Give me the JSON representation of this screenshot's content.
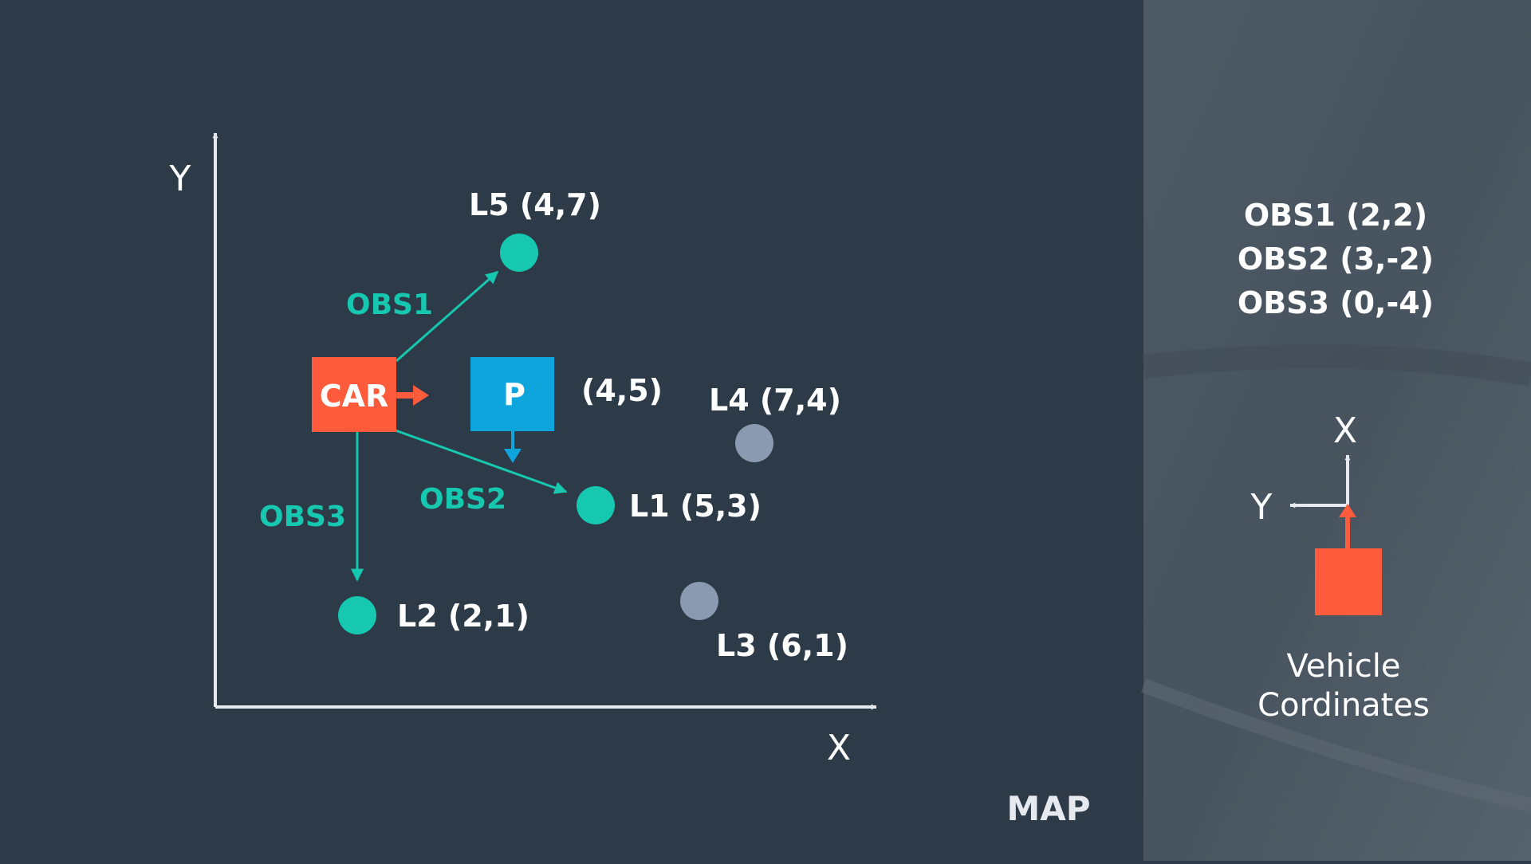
{
  "colors": {
    "background": "#2d3a48",
    "panel": "#4a5661",
    "teal": "#16c8b0",
    "car": "#fd5b3c",
    "particle": "#0ea4dc",
    "landmark_unobserved": "#8a9ab0",
    "axis": "#e6e9ee",
    "text": "#ffffff"
  },
  "map": {
    "title": "MAP",
    "x_axis_label": "X",
    "y_axis_label": "Y",
    "car_label": "CAR",
    "particle": {
      "label": "P",
      "coords_label": "(4,5)"
    },
    "landmarks": [
      {
        "id": "L1",
        "label": "L1 (5,3)",
        "observed": true
      },
      {
        "id": "L2",
        "label": "L2 (2,1)",
        "observed": true
      },
      {
        "id": "L3",
        "label": "L3 (6,1)",
        "observed": false
      },
      {
        "id": "L4",
        "label": "L4 (7,4)",
        "observed": false
      },
      {
        "id": "L5",
        "label": "L5 (4,7)",
        "observed": true
      }
    ],
    "observations": [
      {
        "label": "OBS1",
        "target": "L5"
      },
      {
        "label": "OBS2",
        "target": "L1"
      },
      {
        "label": "OBS3",
        "target": "L2"
      }
    ]
  },
  "side_panel": {
    "observations": [
      "OBS1 (2,2)",
      "OBS2 (3,-2)",
      "OBS3 (0,-4)"
    ],
    "x_axis_label": "X",
    "y_axis_label": "Y",
    "caption_line1": "Vehicle",
    "caption_line2": "Cordinates"
  }
}
